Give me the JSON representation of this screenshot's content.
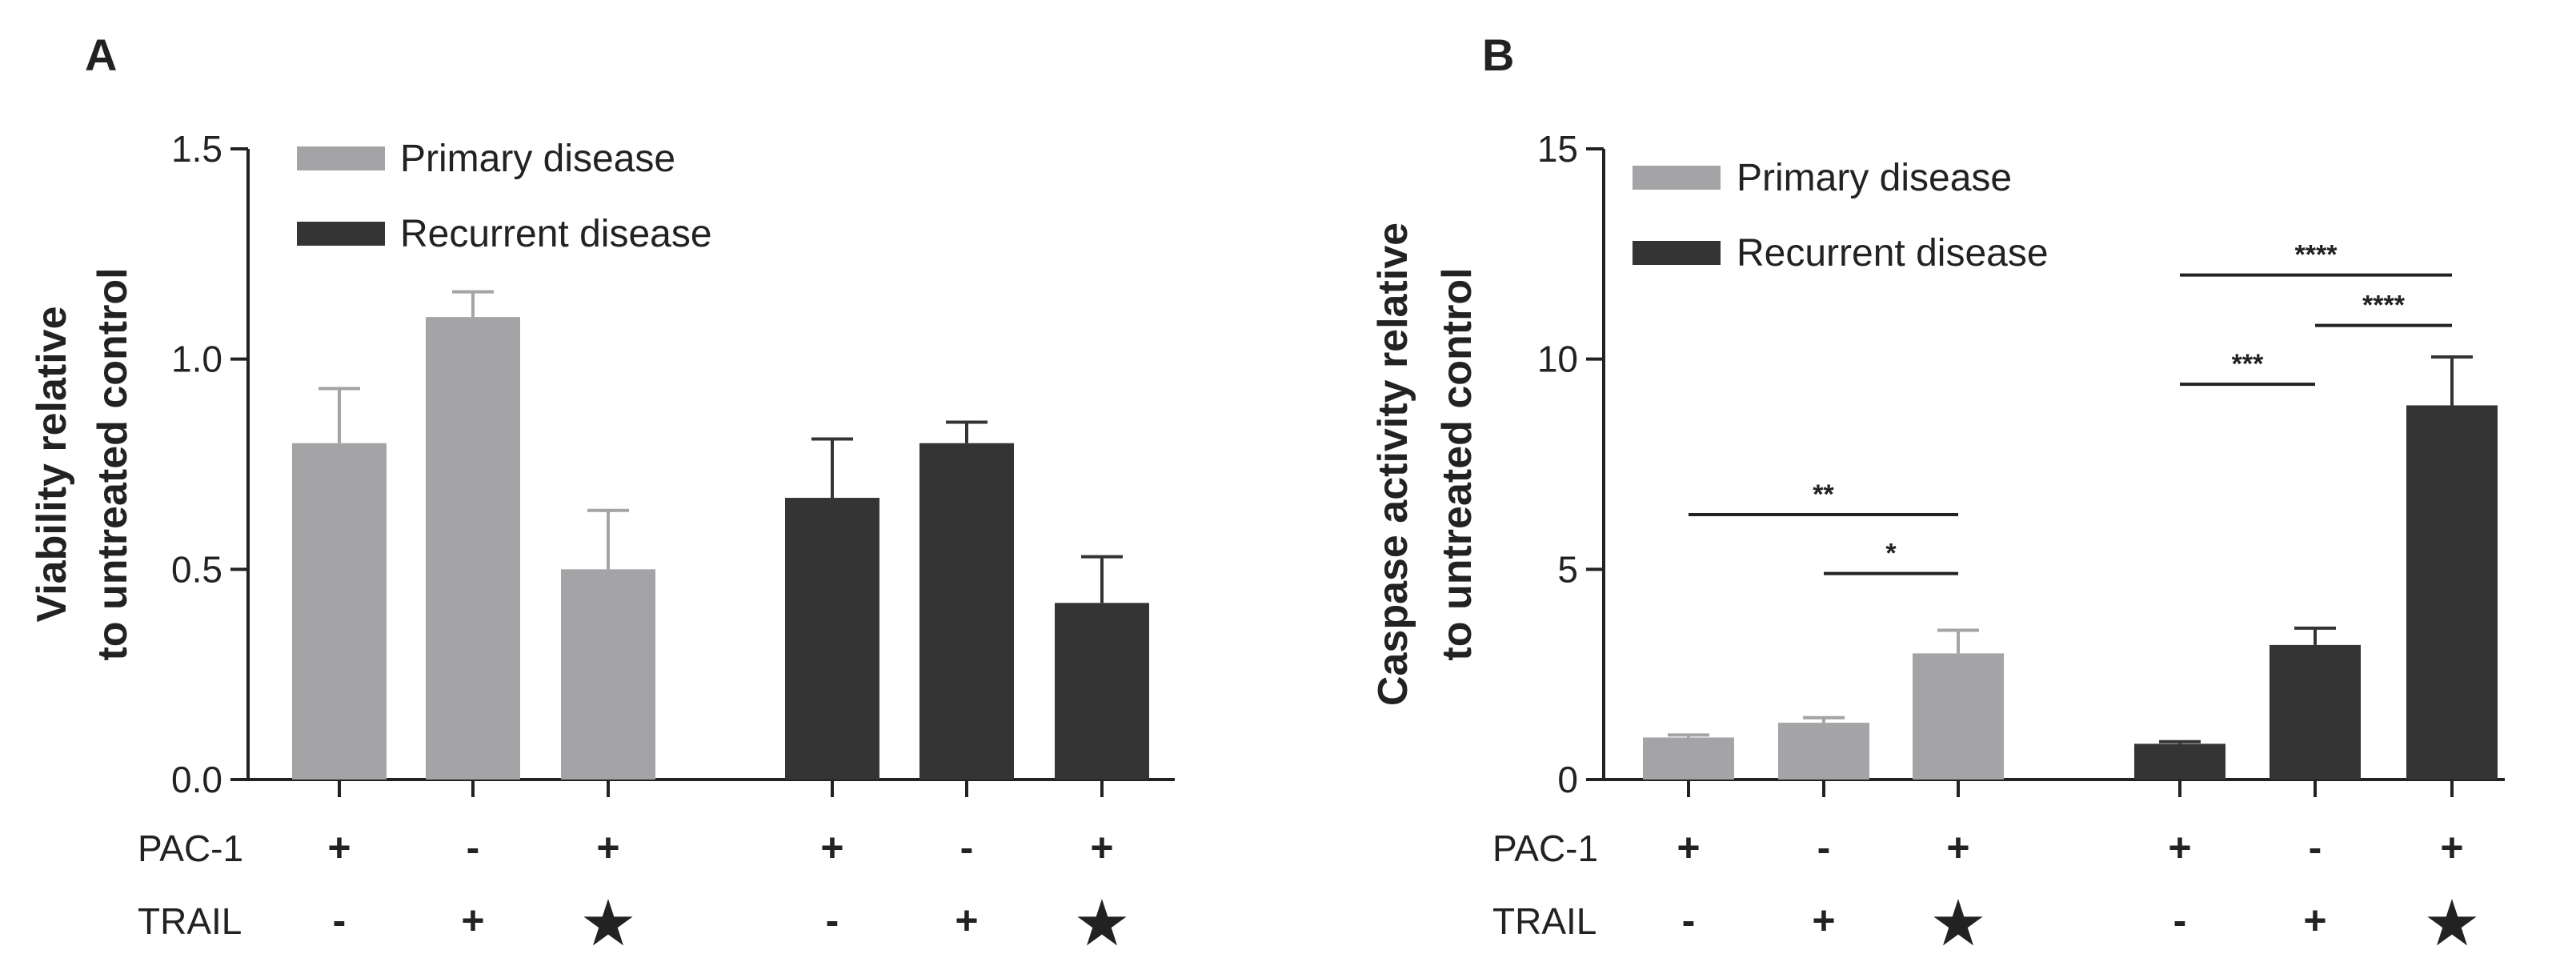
{
  "colors": {
    "primary": "#a4a4a6",
    "recurrent": "#343434",
    "axis": "#222222"
  },
  "row_labels": {
    "pac1": "PAC-1",
    "trail": "TRAIL"
  },
  "chart_data": [
    {
      "id": "A",
      "type": "bar",
      "panel_label": "A",
      "ylabel": [
        "Viability relative",
        "to untreated control"
      ],
      "ylim": [
        0,
        1.5
      ],
      "yticks": [
        "0.0",
        "0.5",
        "1.0",
        "1.5"
      ],
      "ytick_values": [
        0,
        0.5,
        1.0,
        1.5
      ],
      "legend_position": "top-left",
      "conditions": [
        {
          "pac1": "+",
          "trail": "-"
        },
        {
          "pac1": "-",
          "trail": "+"
        },
        {
          "pac1": "+",
          "trail": "★"
        }
      ],
      "series": [
        {
          "name": "Primary disease",
          "color_key": "primary",
          "values": [
            0.8,
            1.1,
            0.5
          ],
          "errors": [
            0.13,
            0.06,
            0.14
          ]
        },
        {
          "name": "Recurrent disease",
          "color_key": "recurrent",
          "values": [
            0.67,
            0.8,
            0.42
          ],
          "errors": [
            0.14,
            0.05,
            0.11
          ]
        }
      ],
      "significance": []
    },
    {
      "id": "B",
      "type": "bar",
      "panel_label": "B",
      "ylabel": [
        "Caspase activity relative",
        "to untreated control"
      ],
      "ylim": [
        0,
        15
      ],
      "yticks": [
        "0",
        "5",
        "10",
        "15"
      ],
      "ytick_values": [
        0,
        5,
        10,
        15
      ],
      "legend_position": "top-left",
      "conditions": [
        {
          "pac1": "+",
          "trail": "-"
        },
        {
          "pac1": "-",
          "trail": "+"
        },
        {
          "pac1": "+",
          "trail": "★"
        }
      ],
      "series": [
        {
          "name": "Primary disease",
          "color_key": "primary",
          "values": [
            1.0,
            1.35,
            3.0
          ],
          "errors": [
            0.06,
            0.12,
            0.55
          ]
        },
        {
          "name": "Recurrent disease",
          "color_key": "recurrent",
          "values": [
            0.85,
            3.2,
            8.9
          ],
          "errors": [
            0.05,
            0.4,
            1.15
          ]
        }
      ],
      "significance": [
        {
          "label": "**",
          "from": [
            0,
            0
          ],
          "to": [
            0,
            2
          ],
          "y": 6.3
        },
        {
          "label": "*",
          "from": [
            0,
            1
          ],
          "to": [
            0,
            2
          ],
          "y": 4.9
        },
        {
          "label": "***",
          "from": [
            1,
            0
          ],
          "to": [
            1,
            1
          ],
          "y": 9.4
        },
        {
          "label": "****",
          "from": [
            1,
            1
          ],
          "to": [
            1,
            2
          ],
          "y": 10.8
        },
        {
          "label": "****",
          "from": [
            1,
            0
          ],
          "to": [
            1,
            2
          ],
          "y": 12.0
        }
      ]
    }
  ]
}
